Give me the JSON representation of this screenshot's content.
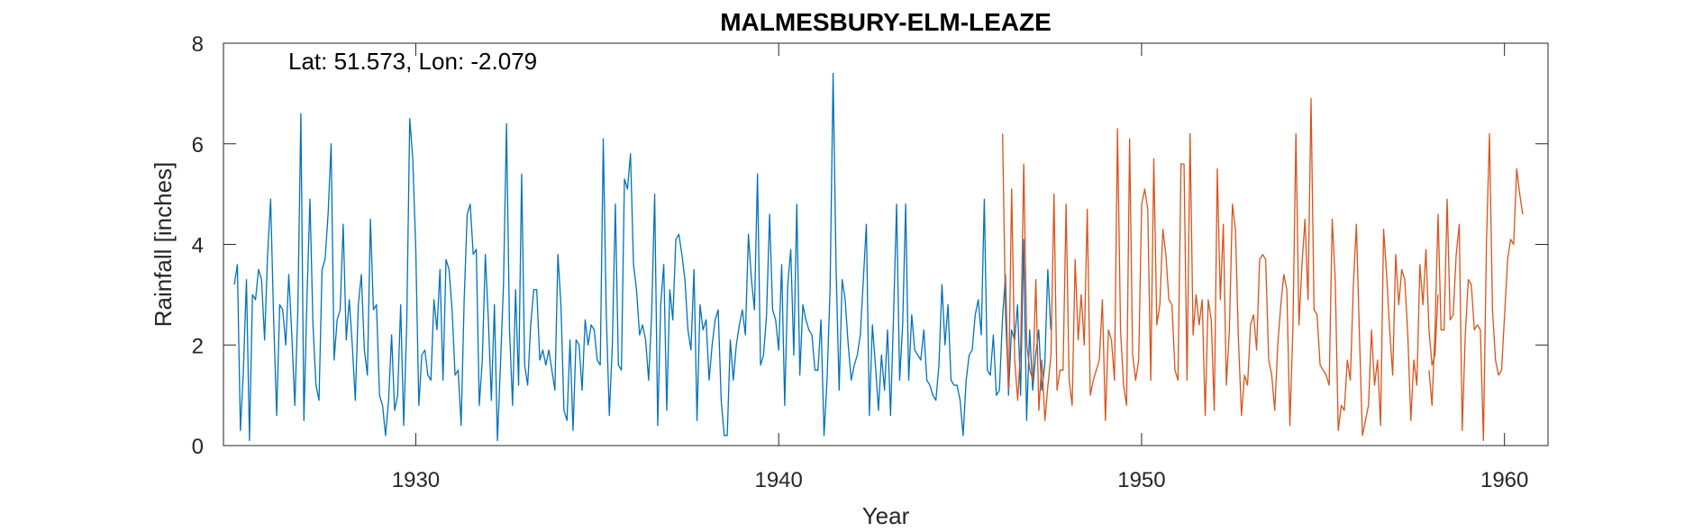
{
  "chart_data": {
    "type": "line",
    "title": "MALMESBURY-ELM-LEAZE",
    "annotation": "Lat: 51.573, Lon: -2.079",
    "xlabel": "Year",
    "ylabel": "Rainfall [inches]",
    "xlim": [
      1924.7,
      1961.2
    ],
    "ylim": [
      0,
      8
    ],
    "xticks": [
      1930,
      1940,
      1950,
      1960
    ],
    "yticks": [
      0,
      2,
      4,
      6,
      8
    ],
    "grid": false,
    "box": true,
    "series": [
      {
        "color": "#0072BD",
        "x_start": 1925.0,
        "step": 0.08333,
        "values": [
          3.2,
          3.6,
          0.3,
          1.5,
          3.3,
          0.1,
          3.0,
          2.9,
          3.5,
          3.3,
          2.1,
          3.8,
          4.9,
          2.5,
          0.6,
          2.8,
          2.7,
          2.0,
          3.4,
          2.2,
          0.8,
          2.7,
          6.6,
          0.5,
          2.9,
          4.9,
          2.4,
          1.2,
          0.9,
          3.5,
          3.7,
          4.6,
          6.0,
          1.7,
          2.5,
          2.7,
          4.4,
          2.1,
          2.9,
          2.0,
          0.9,
          2.8,
          3.4,
          1.9,
          1.4,
          4.5,
          2.7,
          2.8,
          1.0,
          0.8,
          0.2,
          0.9,
          2.2,
          0.7,
          1.0,
          2.8,
          0.4,
          2.4,
          6.5,
          5.7,
          3.9,
          0.8,
          1.8,
          1.9,
          1.4,
          1.3,
          2.9,
          2.3,
          3.5,
          1.3,
          3.7,
          3.5,
          2.7,
          1.4,
          1.5,
          0.4,
          2.9,
          4.6,
          4.8,
          3.8,
          3.9,
          0.8,
          1.7,
          3.8,
          2.5,
          0.9,
          2.8,
          0.1,
          1.6,
          3.2,
          6.4,
          2.3,
          0.8,
          3.1,
          1.2,
          5.4,
          1.6,
          1.2,
          2.4,
          3.1,
          3.1,
          1.7,
          1.9,
          1.6,
          1.9,
          1.5,
          1.1,
          3.8,
          2.8,
          0.7,
          0.5,
          2.1,
          0.3,
          2.1,
          2.0,
          1.1,
          2.5,
          2.0,
          2.4,
          2.3,
          1.7,
          1.6,
          6.1,
          2.6,
          0.6,
          2.0,
          4.8,
          1.6,
          1.5,
          5.3,
          5.1,
          5.8,
          3.6,
          3.1,
          2.2,
          2.4,
          2.1,
          1.3,
          2.6,
          5.0,
          0.4,
          2.8,
          3.6,
          0.7,
          3.1,
          2.5,
          4.1,
          4.2,
          3.8,
          3.3,
          2.3,
          1.9,
          3.5,
          0.5,
          2.8,
          2.3,
          2.5,
          1.3,
          2.0,
          2.5,
          2.7,
          0.9,
          0.2,
          0.2,
          2.1,
          1.3,
          2.0,
          2.4,
          2.7,
          2.2,
          4.2,
          3.3,
          2.7,
          5.4,
          1.6,
          1.8,
          2.6,
          4.6,
          2.7,
          2.5,
          1.9,
          3.6,
          0.8,
          3.2,
          3.9,
          1.8,
          4.8,
          1.4,
          2.8,
          2.5,
          2.3,
          2.2,
          1.5,
          1.5,
          2.5,
          0.2,
          1.3,
          3.1,
          7.4,
          3.5,
          1.1,
          3.3,
          2.9,
          2.0,
          1.3,
          1.6,
          1.8,
          2.2,
          3.3,
          4.4,
          0.6,
          2.4,
          1.6,
          0.7,
          1.8,
          1.1,
          2.3,
          0.6,
          2.6,
          4.8,
          1.3,
          2.4,
          4.8,
          1.3,
          2.6,
          1.9,
          1.8,
          1.7,
          2.3,
          1.3,
          1.2,
          1.0,
          0.9,
          1.6,
          3.2,
          2.0,
          2.8,
          1.3,
          1.2,
          1.2,
          0.9,
          0.2,
          1.3,
          1.8,
          1.9,
          2.6,
          2.9,
          2.2,
          4.9,
          1.5,
          1.4,
          2.2,
          1.0,
          1.1,
          2.5,
          3.4,
          1.0,
          2.3,
          2.1,
          2.8,
          1.0,
          4.1,
          0.5,
          2.3,
          1.1,
          1.8,
          2.3,
          1.1,
          1.6,
          3.5,
          2.3
        ]
      },
      {
        "color": "#D95319",
        "x_start": 1946.17,
        "step": 0.08333,
        "values": [
          6.2,
          2.5,
          1.1,
          5.1,
          1.7,
          0.9,
          2.0,
          5.6,
          2.0,
          1.5,
          1.3,
          3.3,
          0.7,
          1.7,
          0.5,
          1.2,
          1.8,
          5.0,
          1.1,
          1.5,
          1.5,
          4.8,
          1.3,
          0.8,
          3.7,
          2.1,
          3.0,
          2.0,
          4.7,
          1.0,
          1.3,
          1.5,
          1.7,
          2.9,
          0.5,
          2.3,
          2.1,
          1.3,
          6.3,
          2.3,
          1.2,
          0.8,
          6.1,
          1.8,
          1.3,
          1.7,
          4.8,
          5.1,
          4.7,
          1.3,
          5.7,
          2.4,
          2.8,
          4.3,
          3.8,
          2.9,
          2.8,
          1.5,
          1.3,
          5.6,
          5.6,
          1.3,
          6.2,
          2.2,
          3.0,
          2.4,
          2.9,
          0.6,
          2.9,
          2.5,
          0.7,
          5.5,
          2.9,
          4.4,
          1.2,
          2.3,
          4.8,
          4.3,
          2.1,
          0.6,
          1.4,
          1.2,
          2.4,
          2.6,
          1.9,
          3.7,
          3.8,
          3.7,
          1.7,
          1.4,
          0.7,
          2.0,
          2.8,
          3.4,
          3.1,
          0.4,
          2.3,
          6.2,
          2.4,
          3.6,
          4.5,
          2.9,
          6.9,
          2.7,
          2.6,
          1.6,
          1.5,
          1.4,
          1.2,
          4.5,
          3.3,
          0.3,
          0.8,
          0.7,
          1.7,
          1.3,
          3.2,
          4.4,
          2.2,
          0.2,
          0.5,
          0.8,
          2.3,
          1.2,
          1.7,
          0.4,
          4.3,
          3.4,
          2.3,
          1.4,
          3.8,
          2.8,
          3.5,
          3.3,
          2.2,
          0.5,
          1.7,
          1.2,
          3.6,
          2.8,
          3.9,
          2.3,
          1.6,
          1.8,
          3.0
        ]
      },
      {
        "color": "#D95319",
        "x_start": 1957.92,
        "step": 0.08333,
        "values": [
          1.5,
          0.8,
          2.3,
          4.6,
          2.3,
          2.3,
          4.9,
          2.5,
          2.6,
          3.8,
          4.4,
          0.3,
          2.2,
          3.3,
          3.2,
          2.3,
          2.4,
          2.3,
          0.1,
          4.0,
          6.2,
          2.7,
          1.7,
          1.4,
          1.5,
          2.6,
          3.7,
          4.1,
          4.0,
          5.5,
          5.0,
          4.6
        ]
      }
    ]
  }
}
